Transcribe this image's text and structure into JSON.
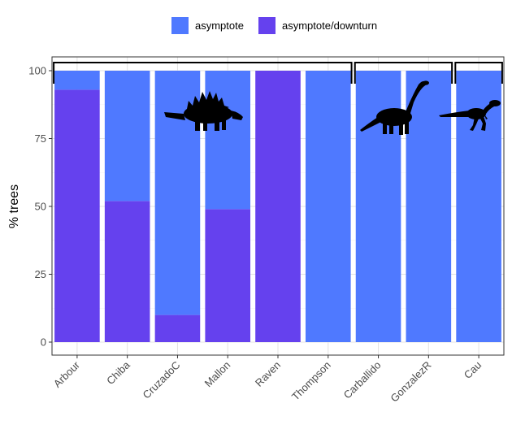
{
  "chart_data": {
    "type": "bar",
    "stacked": true,
    "categories": [
      "Arbour",
      "Chiba",
      "CruzadoC",
      "Mallon",
      "Raven",
      "Thompson",
      "Carballido",
      "GonzalezR",
      "Cau"
    ],
    "series": [
      {
        "name": "asymptote",
        "color": "#4F79FF",
        "values": [
          7,
          48,
          90,
          51,
          0,
          100,
          100,
          100,
          100
        ]
      },
      {
        "name": "asymptote/downturn",
        "color": "#6541EE",
        "values": [
          93,
          52,
          10,
          49,
          100,
          0,
          0,
          0,
          0
        ]
      }
    ],
    "xlabel": "",
    "ylabel": "% trees",
    "ylim": [
      0,
      105
    ],
    "yticks": [
      0,
      25,
      50,
      75,
      100
    ],
    "grid": true,
    "legend_position": "top",
    "groups": [
      {
        "from": 0,
        "to": 5,
        "icon": "stegosaur-silhouette-icon"
      },
      {
        "from": 6,
        "to": 7,
        "icon": "sauropod-silhouette-icon"
      },
      {
        "from": 8,
        "to": 8,
        "icon": "theropod-silhouette-icon"
      }
    ]
  }
}
